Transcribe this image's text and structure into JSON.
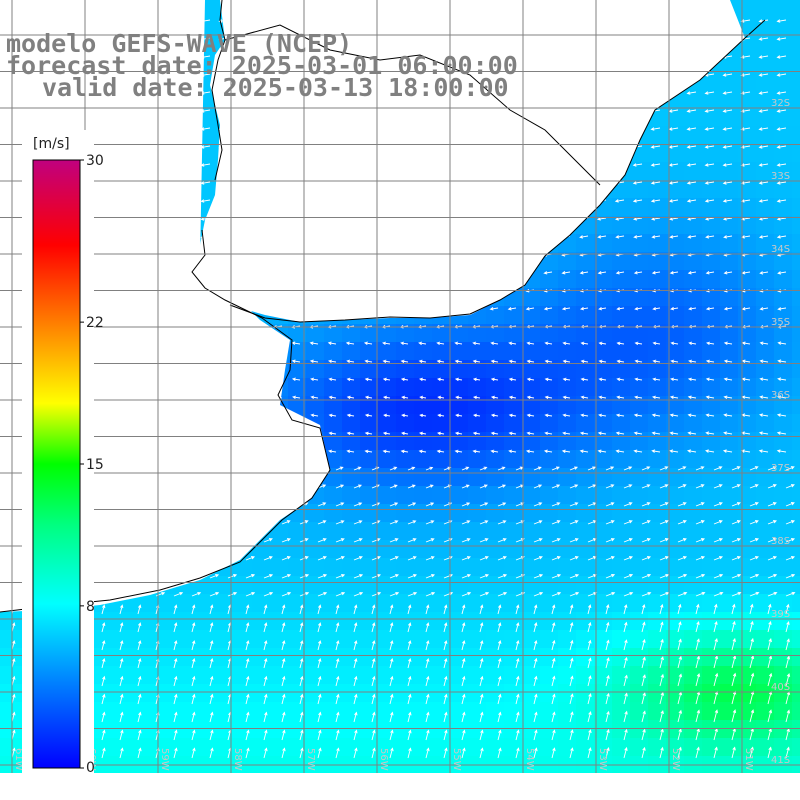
{
  "title": {
    "line1": "modelo GEFS-WAVE (NCEP)",
    "line2": "forecast date: 2025-03-01 06:00:00",
    "line3": "valid date: 2025-03-13 18:00:00"
  },
  "colorbar": {
    "unit": "[m/s]",
    "ticks": [
      {
        "value": 30,
        "label": "30"
      },
      {
        "value": 22,
        "label": "22"
      },
      {
        "value": 15,
        "label": "15"
      },
      {
        "value": 8,
        "label": "8"
      },
      {
        "value": 0,
        "label": "0"
      }
    ],
    "range": [
      0,
      30
    ],
    "colors": [
      "#0000ff",
      "#0080ff",
      "#00ffff",
      "#00ff00",
      "#ffff00",
      "#ff8000",
      "#ff0000",
      "#c0007f"
    ]
  },
  "grid": {
    "lon_labels": [
      "61W",
      "60W",
      "59W",
      "58W",
      "57W",
      "56W",
      "55W",
      "54W",
      "53W",
      "52W",
      "51W"
    ],
    "lat_labels": [
      "32S",
      "33S",
      "34S",
      "35S",
      "36S",
      "37S",
      "38S",
      "39S",
      "40S",
      "41S"
    ],
    "line_color": "#808080"
  },
  "map": {
    "type": "wind-speed-vectors",
    "land_color": "#ffffff",
    "coast_color": "#000000",
    "arrow_color": "#ffffff"
  }
}
